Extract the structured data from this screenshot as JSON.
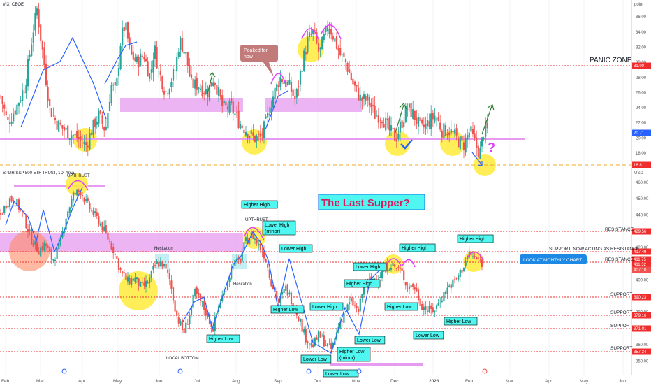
{
  "colors": {
    "up": "#26a69a",
    "down": "#ef5350",
    "dotted": "#ef2d2d",
    "pink_zone": "#e79bf0",
    "yellow": "#ffeb3b",
    "cyan_label": "#4ff7f0",
    "trend_line": "#2962ff",
    "green_arrow": "#2e7d32",
    "axis_text": "#555555",
    "title_text": "#131722"
  },
  "header": {
    "vix_title": "VIX, CBOE",
    "spy_title": "SPDR S&P 500 ETF TRUST, 1D, Arca",
    "currency": "USD",
    "scale_mode": "point"
  },
  "chart_data": [
    {
      "type": "candlestick",
      "panel": "top",
      "symbol": "VIX",
      "ylim": [
        16.8,
        37.5
      ],
      "y_ticks": [
        18.0,
        20.0,
        22.0,
        24.0,
        26.0,
        28.0,
        30.0,
        32.0,
        34.0,
        36.0
      ],
      "x_labels": [
        "Feb",
        "Mar",
        "Apr",
        "May",
        "Jun",
        "Jul",
        "Aug",
        "Sep",
        "Oct",
        "Nov",
        "Dec",
        "2023",
        "Feb",
        "Mar",
        "Apr",
        "May",
        "Jun"
      ],
      "badges": {
        "current": "20.71",
        "level_high": "31.00",
        "level_low": "16.81"
      },
      "levels": [
        31.0,
        20.0,
        16.81
      ],
      "path": [
        [
          0,
          25.5
        ],
        [
          10,
          22
        ],
        [
          22,
          24
        ],
        [
          35,
          27
        ],
        [
          46,
          34
        ],
        [
          52,
          37
        ],
        [
          62,
          30
        ],
        [
          70,
          24
        ],
        [
          80,
          22
        ],
        [
          92,
          21
        ],
        [
          110,
          20
        ],
        [
          122,
          19
        ],
        [
          130,
          21
        ],
        [
          140,
          23
        ],
        [
          150,
          21
        ],
        [
          158,
          27
        ],
        [
          165,
          26
        ],
        [
          172,
          33
        ],
        [
          178,
          35
        ],
        [
          186,
          31
        ],
        [
          195,
          30
        ],
        [
          205,
          31
        ],
        [
          214,
          28
        ],
        [
          220,
          32
        ],
        [
          226,
          29
        ],
        [
          236,
          26
        ],
        [
          250,
          29
        ],
        [
          256,
          33
        ],
        [
          265,
          31
        ],
        [
          273,
          27
        ],
        [
          283,
          27
        ],
        [
          296,
          26
        ],
        [
          305,
          28
        ],
        [
          318,
          24
        ],
        [
          330,
          24
        ],
        [
          342,
          22
        ],
        [
          352,
          21
        ],
        [
          362,
          20
        ],
        [
          372,
          20
        ],
        [
          380,
          22
        ],
        [
          388,
          25
        ],
        [
          400,
          28
        ],
        [
          412,
          27
        ],
        [
          422,
          25
        ],
        [
          432,
          30
        ],
        [
          440,
          33
        ],
        [
          448,
          34
        ],
        [
          456,
          31
        ],
        [
          462,
          33
        ],
        [
          470,
          35
        ],
        [
          478,
          33
        ],
        [
          486,
          31
        ],
        [
          494,
          30
        ],
        [
          505,
          27
        ],
        [
          516,
          25
        ],
        [
          526,
          25
        ],
        [
          536,
          23
        ],
        [
          545,
          23
        ],
        [
          556,
          21
        ],
        [
          566,
          20
        ],
        [
          574,
          22
        ],
        [
          582,
          24
        ],
        [
          592,
          23
        ],
        [
          602,
          21
        ],
        [
          612,
          22
        ],
        [
          622,
          23
        ],
        [
          632,
          21
        ],
        [
          642,
          21
        ],
        [
          652,
          20
        ],
        [
          662,
          19
        ],
        [
          672,
          21
        ],
        [
          680,
          19
        ],
        [
          686,
          18
        ],
        [
          692,
          21
        ],
        [
          698,
          21
        ]
      ],
      "vix_annotations": {
        "callout": "Peaked for now",
        "zone_label": "PANIC ZONE",
        "question": "?"
      }
    },
    {
      "type": "candlestick",
      "panel": "bottom",
      "symbol": "SPY",
      "ylim": [
        345,
        463
      ],
      "y_ticks": [
        350.0,
        360.0,
        370.0,
        380.0,
        390.0,
        400.0,
        410.0,
        420.0,
        430.0,
        440.0,
        450.0,
        460.0
      ],
      "x_labels": [
        "Feb",
        "Mar",
        "Apr",
        "May",
        "Jun",
        "Jul",
        "Aug",
        "Sep",
        "Oct",
        "Nov",
        "Dec",
        "2023",
        "Feb",
        "Mar",
        "Apr",
        "May",
        "Jun"
      ],
      "badges": {
        "b1": "429.56",
        "b2": "417.49",
        "b3": "411.75",
        "b4": "411.32",
        "b5": "407.10",
        "b6": "390.23",
        "b7": "379.16",
        "b8": "371.01",
        "b9": "357.34"
      },
      "levels": [
        429.56,
        417.49,
        411.32,
        390.23,
        379.16,
        371.01,
        357.34
      ],
      "path": [
        [
          0,
          440
        ],
        [
          12,
          450
        ],
        [
          22,
          448
        ],
        [
          32,
          440
        ],
        [
          44,
          425
        ],
        [
          54,
          418
        ],
        [
          64,
          422
        ],
        [
          74,
          412
        ],
        [
          84,
          420
        ],
        [
          94,
          440
        ],
        [
          104,
          452
        ],
        [
          114,
          455
        ],
        [
          124,
          446
        ],
        [
          134,
          440
        ],
        [
          144,
          434
        ],
        [
          154,
          425
        ],
        [
          162,
          418
        ],
        [
          172,
          405
        ],
        [
          182,
          399
        ],
        [
          192,
          401
        ],
        [
          202,
          395
        ],
        [
          212,
          399
        ],
        [
          222,
          410
        ],
        [
          232,
          410
        ],
        [
          242,
          400
        ],
        [
          252,
          378
        ],
        [
          262,
          367
        ],
        [
          270,
          378
        ],
        [
          278,
          392
        ],
        [
          288,
          385
        ],
        [
          296,
          378
        ],
        [
          304,
          370
        ],
        [
          312,
          384
        ],
        [
          322,
          395
        ],
        [
          332,
          410
        ],
        [
          342,
          411
        ],
        [
          350,
          423
        ],
        [
          360,
          428
        ],
        [
          368,
          422
        ],
        [
          378,
          415
        ],
        [
          388,
          398
        ],
        [
          398,
          386
        ],
        [
          408,
          395
        ],
        [
          416,
          388
        ],
        [
          426,
          378
        ],
        [
          436,
          365
        ],
        [
          446,
          359
        ],
        [
          456,
          366
        ],
        [
          466,
          360
        ],
        [
          474,
          357
        ],
        [
          484,
          372
        ],
        [
          492,
          380
        ],
        [
          502,
          387
        ],
        [
          512,
          380
        ],
        [
          520,
          397
        ],
        [
          530,
          400
        ],
        [
          540,
          402
        ],
        [
          550,
          406
        ],
        [
          558,
          410
        ],
        [
          566,
          407
        ],
        [
          574,
          405
        ],
        [
          582,
          396
        ],
        [
          592,
          396
        ],
        [
          602,
          385
        ],
        [
          612,
          381
        ],
        [
          622,
          382
        ],
        [
          632,
          390
        ],
        [
          642,
          396
        ],
        [
          652,
          400
        ],
        [
          662,
          408
        ],
        [
          670,
          416
        ],
        [
          680,
          413
        ],
        [
          690,
          410
        ]
      ]
    }
  ],
  "annotations": {
    "title_box": "The Last Supper?",
    "monthly_chart": "LOOK AT MONTHLY CHART",
    "upthrust_1": "UPTHRUST",
    "upthrust_2": "UPTHRUST",
    "hesitation_1": "Hesitation",
    "hesitation_2": "Hesitation",
    "local_bottom": "LOCAL BOTTOM",
    "higher_high_1": "Higher High",
    "lower_high_minor": "Lower High\n(minor)",
    "lower_high_1": "Lower High",
    "higher_high_2": "Higher High",
    "higher_high_3": "Higher High",
    "lower_high_2": "Lower High",
    "higher_high_4": "Higher High",
    "lower_high_3": "Lower High",
    "higher_low_1": "Higher Low",
    "higher_low_2": "Higher Low",
    "higher_low_3": "Higher Low",
    "higher_low_4": "Higher Low",
    "higher_low_minor": "Higher Low\n(minor)",
    "lower_low_1": "Lower Low",
    "lower_low_2": "Lower Low",
    "lower_low_3": "Lower Low",
    "resistance_1": "RESISTANCE",
    "resistance_2": "RESISTANCE",
    "support_resistance": "SUPPORT, NOW ACTING AS RESISTANCE",
    "support_1": "SUPPORT",
    "support_2": "SUPPORT",
    "support_3": "SUPPORT",
    "support_4": "SUPPORT"
  }
}
